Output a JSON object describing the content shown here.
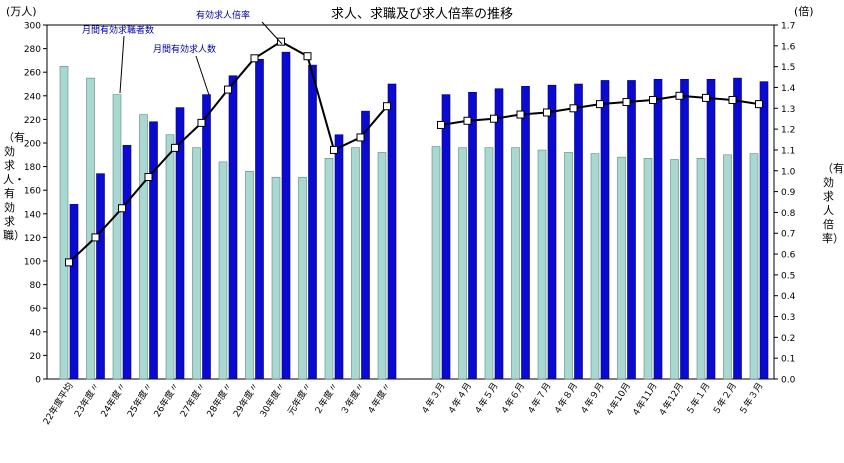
{
  "chart_data": {
    "type": "bar",
    "title": "求人、求職及び求人倍率の推移",
    "left_unit": "(万人)",
    "right_unit": "(倍)",
    "ylabel_left": "（有効求人・有効求職）",
    "ylabel_right": "（有効求人倍率）",
    "ylim": [
      0,
      300
    ],
    "ylim_right": [
      0.0,
      1.7
    ],
    "yticks_left": [
      "0",
      "20",
      "40",
      "60",
      "80",
      "100",
      "120",
      "140",
      "160",
      "180",
      "200",
      "220",
      "240",
      "260",
      "280",
      "300"
    ],
    "yticks_right": [
      "0.0",
      "0.1",
      "0.2",
      "0.3",
      "0.4",
      "0.5",
      "0.6",
      "0.7",
      "0.8",
      "0.9",
      "1.0",
      "1.1",
      "1.2",
      "1.3",
      "1.4",
      "1.5",
      "1.6",
      "1.7"
    ],
    "categories": [
      "22年度平均",
      "23年度〃",
      "24年度〃",
      "25年度〃",
      "26年度〃",
      "27年度〃",
      "28年度〃",
      "29年度〃",
      "30年度〃",
      "元年度〃",
      "２年度〃",
      "３年度〃",
      "４年度〃",
      "４年３月",
      "４年４月",
      "４年５月",
      "４年６月",
      "４年７月",
      "４年８月",
      "４年９月",
      "４年10月",
      "４年11月",
      "４年12月",
      "５年１月",
      "５年２月",
      "５年３月"
    ],
    "series": [
      {
        "name": "月間有効求職者数",
        "color": "#a8d8d0",
        "values": [
          265,
          255,
          241,
          224,
          207,
          196,
          184,
          176,
          171,
          171,
          187,
          196,
          192,
          197,
          196,
          196,
          196,
          194,
          192,
          191,
          188,
          187,
          186,
          187,
          190,
          191
        ]
      },
      {
        "name": "月間有効求人数",
        "color": "#0a0ad0",
        "values": [
          148,
          174,
          198,
          218,
          230,
          241,
          257,
          271,
          277,
          266,
          207,
          227,
          250,
          241,
          243,
          246,
          248,
          249,
          250,
          253,
          253,
          254,
          254,
          254,
          255,
          252
        ]
      },
      {
        "name": "有効求人倍率",
        "axis": "right",
        "type": "line",
        "values": [
          0.56,
          0.68,
          0.82,
          0.97,
          1.11,
          1.23,
          1.39,
          1.54,
          1.62,
          1.55,
          1.1,
          1.16,
          1.31,
          1.22,
          1.24,
          1.25,
          1.27,
          1.28,
          1.3,
          1.32,
          1.33,
          1.34,
          1.36,
          1.35,
          1.34,
          1.32
        ]
      }
    ],
    "annotations": [
      {
        "text": "月間有効求職者数",
        "series": 0
      },
      {
        "text": "有効求人倍率",
        "series": 2
      },
      {
        "text": "月間有効求人数",
        "series": 1
      }
    ],
    "grid": false,
    "legend": "none"
  }
}
